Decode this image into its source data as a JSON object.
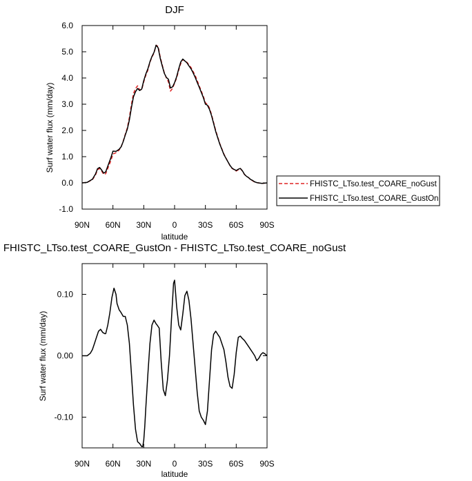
{
  "chart_data": [
    {
      "type": "line",
      "title": "DJF",
      "xlabel": "latitude",
      "ylabel": "Surf water flux (mm/day)",
      "xlim": [
        90,
        -90
      ],
      "ylim": [
        -1.0,
        6.0
      ],
      "xticks": [
        {
          "value": 90,
          "label": "90N"
        },
        {
          "value": 60,
          "label": "60N"
        },
        {
          "value": 30,
          "label": "30N"
        },
        {
          "value": 0,
          "label": "0"
        },
        {
          "value": -30,
          "label": "30S"
        },
        {
          "value": -60,
          "label": "60S"
        },
        {
          "value": -90,
          "label": "90S"
        }
      ],
      "yticks": [
        {
          "value": -1.0,
          "label": "-1.0"
        },
        {
          "value": 0.0,
          "label": "0.0"
        },
        {
          "value": 1.0,
          "label": "1.0"
        },
        {
          "value": 2.0,
          "label": "2.0"
        },
        {
          "value": 3.0,
          "label": "3.0"
        },
        {
          "value": 4.0,
          "label": "4.0"
        },
        {
          "value": 5.0,
          "label": "5.0"
        },
        {
          "value": 6.0,
          "label": "6.0"
        }
      ],
      "grid": false,
      "legend": "right",
      "series": [
        {
          "name": "FHISTC_LTso.test_COARE_noGust",
          "color": "#dd2222",
          "dash": "dashed",
          "x": [
            90,
            85,
            80,
            77,
            75,
            73,
            71,
            69,
            67,
            65,
            62,
            60,
            57,
            54,
            52,
            50,
            48,
            46,
            44,
            42,
            40,
            38,
            36,
            34,
            32,
            30,
            28,
            26,
            24,
            22,
            20,
            18,
            16,
            14,
            12,
            10,
            8,
            6,
            4,
            2,
            0,
            -2,
            -4,
            -6,
            -8,
            -10,
            -12,
            -14,
            -16,
            -18,
            -20,
            -22,
            -24,
            -26,
            -28,
            -30,
            -32,
            -34,
            -36,
            -38,
            -40,
            -42,
            -44,
            -46,
            -48,
            -50,
            -52,
            -54,
            -56,
            -58,
            -60,
            -62,
            -64,
            -66,
            -68,
            -70,
            -72,
            -74,
            -76,
            -78,
            -80,
            -85,
            -90
          ],
          "y": [
            0.0,
            0.02,
            0.12,
            0.3,
            0.5,
            0.55,
            0.45,
            0.32,
            0.35,
            0.55,
            0.85,
            1.1,
            1.15,
            1.25,
            1.38,
            1.6,
            1.85,
            2.1,
            2.5,
            3.0,
            3.4,
            3.6,
            3.7,
            3.55,
            3.55,
            3.85,
            4.1,
            4.3,
            4.6,
            4.8,
            4.95,
            5.25,
            5.2,
            4.8,
            4.5,
            4.2,
            4.0,
            3.85,
            3.5,
            3.6,
            3.8,
            4.0,
            4.3,
            4.55,
            4.7,
            4.65,
            4.6,
            4.5,
            4.4,
            4.25,
            4.1,
            3.9,
            3.7,
            3.5,
            3.3,
            3.05,
            3.0,
            2.85,
            2.6,
            2.3,
            2.0,
            1.75,
            1.5,
            1.3,
            1.1,
            0.95,
            0.8,
            0.65,
            0.55,
            0.5,
            0.45,
            0.5,
            0.55,
            0.45,
            0.32,
            0.25,
            0.2,
            0.12,
            0.08,
            0.03,
            0.01,
            -0.02,
            0.0
          ]
        },
        {
          "name": "FHISTC_LTso.test_COARE_GustOn",
          "color": "#000000",
          "dash": "solid",
          "x": [
            90,
            85,
            80,
            77,
            75,
            73,
            71,
            69,
            67,
            65,
            62,
            60,
            57,
            54,
            52,
            50,
            48,
            46,
            44,
            42,
            40,
            38,
            36,
            34,
            32,
            30,
            28,
            26,
            24,
            22,
            20,
            18,
            16,
            14,
            12,
            10,
            8,
            6,
            4,
            2,
            0,
            -2,
            -4,
            -6,
            -8,
            -10,
            -12,
            -14,
            -16,
            -18,
            -20,
            -22,
            -24,
            -26,
            -28,
            -30,
            -32,
            -34,
            -36,
            -38,
            -40,
            -42,
            -44,
            -46,
            -48,
            -50,
            -52,
            -54,
            -56,
            -58,
            -60,
            -62,
            -64,
            -66,
            -68,
            -70,
            -72,
            -74,
            -76,
            -78,
            -80,
            -85,
            -90
          ],
          "y": [
            0.0,
            0.02,
            0.14,
            0.34,
            0.54,
            0.59,
            0.49,
            0.37,
            0.42,
            0.64,
            0.96,
            1.21,
            1.2,
            1.28,
            1.38,
            1.58,
            1.82,
            2.05,
            2.4,
            2.88,
            3.28,
            3.48,
            3.6,
            3.52,
            3.58,
            3.9,
            4.15,
            4.35,
            4.62,
            4.82,
            4.98,
            5.25,
            5.15,
            4.75,
            4.46,
            4.18,
            4.02,
            3.95,
            3.62,
            3.66,
            3.82,
            4.05,
            4.35,
            4.61,
            4.72,
            4.65,
            4.58,
            4.46,
            4.35,
            4.2,
            4.03,
            3.83,
            3.65,
            3.45,
            3.25,
            3.0,
            2.96,
            2.8,
            2.56,
            2.26,
            1.96,
            1.72,
            1.48,
            1.28,
            1.08,
            0.94,
            0.8,
            0.66,
            0.56,
            0.51,
            0.47,
            0.52,
            0.55,
            0.46,
            0.33,
            0.25,
            0.2,
            0.13,
            0.09,
            0.04,
            0.01,
            -0.02,
            0.0
          ]
        }
      ]
    },
    {
      "type": "line",
      "title": "FHISTC_LTso.test_COARE_GustOn - FHISTC_LTso.test_COARE_noGust",
      "xlabel": "latitude",
      "ylabel": "Surf water flux (mm/day)",
      "xlim": [
        90,
        -90
      ],
      "ylim": [
        -0.15,
        0.15
      ],
      "xticks": [
        {
          "value": 90,
          "label": "90N"
        },
        {
          "value": 60,
          "label": "60N"
        },
        {
          "value": 30,
          "label": "30N"
        },
        {
          "value": 0,
          "label": "0"
        },
        {
          "value": -30,
          "label": "30S"
        },
        {
          "value": -60,
          "label": "60S"
        },
        {
          "value": -90,
          "label": "90S"
        }
      ],
      "yticks": [
        {
          "value": 0.1,
          "label": "0.10"
        },
        {
          "value": 0.0,
          "label": "0.00"
        },
        {
          "value": -0.1,
          "label": "-0.10"
        }
      ],
      "grid": false,
      "series": [
        {
          "color": "#000000",
          "dash": "solid",
          "x": [
            90,
            85,
            82,
            80,
            78,
            76,
            74,
            72,
            70,
            68,
            67,
            65,
            63,
            61,
            59,
            57,
            56,
            54,
            52,
            50,
            48,
            46,
            44,
            42,
            40,
            38,
            36,
            34,
            32,
            31,
            30,
            29,
            28,
            26,
            24,
            22,
            20,
            18,
            17,
            15,
            13,
            11,
            9,
            7,
            5,
            3,
            1,
            0,
            -2,
            -4,
            -6,
            -8,
            -10,
            -12,
            -14,
            -16,
            -18,
            -20,
            -22,
            -24,
            -26,
            -28,
            -30,
            -32,
            -34,
            -36,
            -38,
            -40,
            -42,
            -44,
            -46,
            -48,
            -50,
            -52,
            -54,
            -56,
            -58,
            -60,
            -62,
            -64,
            -66,
            -68,
            -70,
            -72,
            -74,
            -76,
            -78,
            -80,
            -82,
            -84,
            -86,
            -88,
            -90
          ],
          "y": [
            0.0,
            0.0,
            0.004,
            0.01,
            0.02,
            0.03,
            0.04,
            0.043,
            0.038,
            0.036,
            0.036,
            0.05,
            0.07,
            0.095,
            0.11,
            0.1,
            0.085,
            0.075,
            0.07,
            0.064,
            0.064,
            0.05,
            0.02,
            -0.03,
            -0.08,
            -0.12,
            -0.14,
            -0.143,
            -0.148,
            -0.148,
            -0.138,
            -0.115,
            -0.085,
            -0.03,
            0.02,
            0.05,
            0.058,
            0.052,
            0.05,
            0.045,
            -0.01,
            -0.055,
            -0.065,
            -0.04,
            0.0,
            0.06,
            0.118,
            0.123,
            0.08,
            0.05,
            0.042,
            0.068,
            0.098,
            0.105,
            0.09,
            0.06,
            0.02,
            -0.02,
            -0.06,
            -0.09,
            -0.1,
            -0.105,
            -0.112,
            -0.09,
            -0.04,
            0.01,
            0.035,
            0.04,
            0.035,
            0.03,
            0.02,
            0.01,
            -0.01,
            -0.035,
            -0.05,
            -0.053,
            -0.03,
            0.005,
            0.03,
            0.032,
            0.028,
            0.025,
            0.02,
            0.015,
            0.01,
            0.005,
            0.0,
            -0.008,
            -0.004,
            0.002,
            0.005,
            0.003,
            0.0
          ]
        }
      ]
    }
  ]
}
